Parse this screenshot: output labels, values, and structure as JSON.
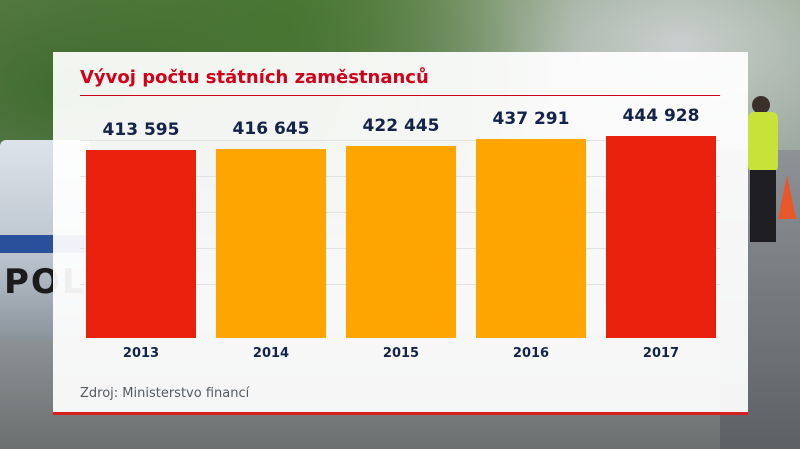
{
  "chart_data": {
    "type": "bar",
    "title": "Vývoj počtu státních zaměstnanců",
    "categories": [
      "2013",
      "2014",
      "2015",
      "2016",
      "2017"
    ],
    "values": [
      413595,
      416645,
      422445,
      437291,
      444928
    ],
    "value_labels": [
      "413 595",
      "416 645",
      "422 445",
      "437 291",
      "444 928"
    ],
    "bar_colors": [
      "#e8200c",
      "#ffa500",
      "#ffa500",
      "#ffa500",
      "#e8200c"
    ],
    "source": "Zdroj: Ministerstvo financí"
  },
  "colors": {
    "title": "#d0021b",
    "accent_red": "#e8200c",
    "accent_orange": "#ffa500",
    "label_navy": "#14234a"
  }
}
